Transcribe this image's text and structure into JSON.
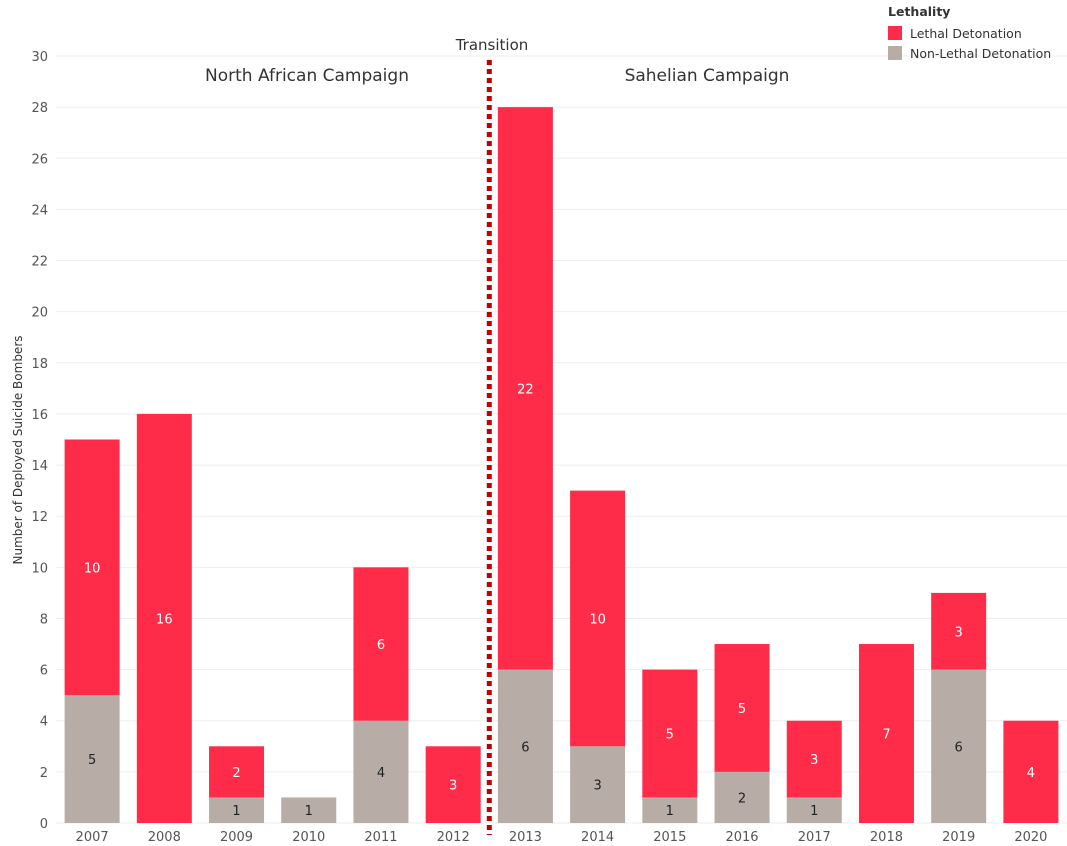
{
  "colors": {
    "lethal": "#fe2c48",
    "non_lethal": "#b7aca6",
    "transition_line": "#c00000",
    "grid": "#eeeeee"
  },
  "legend": {
    "title": "Lethality",
    "items": [
      {
        "label": "Lethal Detonation",
        "color": "#fe2c48"
      },
      {
        "label": "Non-Lethal Detonation",
        "color": "#b7aca6"
      }
    ]
  },
  "annotations": {
    "left_campaign": "North African Campaign",
    "right_campaign": "Sahelian Campaign",
    "transition": "Transition"
  },
  "chart_data": {
    "type": "bar",
    "stacked": true,
    "title": "",
    "xlabel": "",
    "ylabel": "Number of Deployed Suicide Bombers",
    "ylim": [
      0,
      30
    ],
    "yticks": [
      0,
      2,
      4,
      6,
      8,
      10,
      12,
      14,
      16,
      18,
      20,
      22,
      24,
      26,
      28,
      30
    ],
    "grid": true,
    "legend_position": "top-right",
    "categories": [
      "2007",
      "2008",
      "2009",
      "2010",
      "2011",
      "2012",
      "2013",
      "2014",
      "2015",
      "2016",
      "2017",
      "2018",
      "2019",
      "2020"
    ],
    "series": [
      {
        "name": "Non-Lethal Detonation",
        "values": [
          5,
          0,
          1,
          1,
          4,
          0,
          6,
          3,
          1,
          2,
          1,
          0,
          6,
          0
        ]
      },
      {
        "name": "Lethal Detonation",
        "values": [
          10,
          16,
          2,
          0,
          6,
          3,
          22,
          10,
          5,
          5,
          3,
          7,
          3,
          4
        ]
      }
    ],
    "transition_between": [
      "2012",
      "2013"
    ]
  }
}
